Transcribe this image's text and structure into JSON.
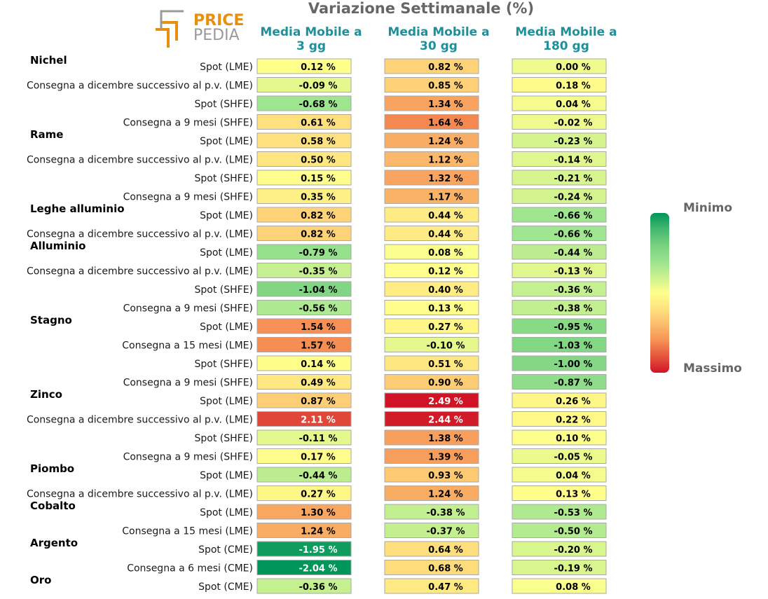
{
  "chart_data": {
    "type": "heatmap",
    "title": "Variazione Settimanale (%)",
    "columns": [
      "Media Mobile a\n3 gg",
      "Media Mobile a\n30 gg",
      "Media Mobile a\n180 gg"
    ],
    "groups": [
      {
        "name": "Nichel",
        "rows": [
          {
            "label": "Spot (LME)",
            "values": [
              0.12,
              0.82,
              0.0
            ]
          },
          {
            "label": "Consegna a dicembre successivo al p.v. (LME)",
            "values": [
              -0.09,
              0.85,
              0.18
            ]
          },
          {
            "label": "Spot (SHFE)",
            "values": [
              -0.68,
              1.34,
              0.04
            ]
          },
          {
            "label": "Consegna a 9 mesi (SHFE)",
            "values": [
              0.61,
              1.64,
              -0.02
            ]
          }
        ]
      },
      {
        "name": "Rame",
        "rows": [
          {
            "label": "Spot (LME)",
            "values": [
              0.58,
              1.24,
              -0.23
            ]
          },
          {
            "label": "Consegna a dicembre successivo al p.v. (LME)",
            "values": [
              0.5,
              1.12,
              -0.14
            ]
          },
          {
            "label": "Spot (SHFE)",
            "values": [
              0.15,
              1.32,
              -0.21
            ]
          },
          {
            "label": "Consegna a 9 mesi (SHFE)",
            "values": [
              0.35,
              1.17,
              -0.24
            ]
          }
        ]
      },
      {
        "name": "Leghe alluminio",
        "rows": [
          {
            "label": "Spot (LME)",
            "values": [
              0.82,
              0.44,
              -0.66
            ]
          },
          {
            "label": "Consegna a dicembre successivo al p.v. (LME)",
            "values": [
              0.82,
              0.44,
              -0.66
            ]
          }
        ]
      },
      {
        "name": "Alluminio",
        "rows": [
          {
            "label": "Spot (LME)",
            "values": [
              -0.79,
              0.08,
              -0.44
            ]
          },
          {
            "label": "Consegna a dicembre successivo al p.v. (LME)",
            "values": [
              -0.35,
              0.12,
              -0.13
            ]
          },
          {
            "label": "Spot (SHFE)",
            "values": [
              -1.04,
              0.4,
              -0.36
            ]
          },
          {
            "label": "Consegna a 9 mesi (SHFE)",
            "values": [
              -0.56,
              0.13,
              -0.38
            ]
          }
        ]
      },
      {
        "name": "Stagno",
        "rows": [
          {
            "label": "Spot (LME)",
            "values": [
              1.54,
              0.27,
              -0.95
            ]
          },
          {
            "label": "Consegna a 15 mesi (LME)",
            "values": [
              1.57,
              -0.1,
              -1.03
            ]
          },
          {
            "label": "Spot (SHFE)",
            "values": [
              0.14,
              0.51,
              -1.0
            ]
          },
          {
            "label": "Consegna a 9 mesi (SHFE)",
            "values": [
              0.49,
              0.9,
              -0.87
            ]
          }
        ]
      },
      {
        "name": "Zinco",
        "rows": [
          {
            "label": "Spot (LME)",
            "values": [
              0.87,
              2.49,
              0.26
            ]
          },
          {
            "label": "Consegna a dicembre successivo al p.v. (LME)",
            "values": [
              2.11,
              2.44,
              0.22
            ]
          },
          {
            "label": "Spot (SHFE)",
            "values": [
              -0.11,
              1.38,
              0.1
            ]
          },
          {
            "label": "Consegna a 9 mesi (SHFE)",
            "values": [
              0.17,
              1.39,
              -0.05
            ]
          }
        ]
      },
      {
        "name": "Piombo",
        "rows": [
          {
            "label": "Spot (LME)",
            "values": [
              -0.44,
              0.93,
              0.04
            ]
          },
          {
            "label": "Consegna a dicembre successivo al p.v. (LME)",
            "values": [
              0.27,
              1.24,
              0.13
            ]
          }
        ]
      },
      {
        "name": "Cobalto",
        "rows": [
          {
            "label": "Spot (LME)",
            "values": [
              1.3,
              -0.38,
              -0.53
            ]
          },
          {
            "label": "Consegna a 15 mesi (LME)",
            "values": [
              1.24,
              -0.37,
              -0.5
            ]
          }
        ]
      },
      {
        "name": "Argento",
        "rows": [
          {
            "label": "Spot (CME)",
            "values": [
              -1.95,
              0.64,
              -0.2
            ]
          },
          {
            "label": "Consegna a 6 mesi (CME)",
            "values": [
              -2.04,
              0.68,
              -0.19
            ]
          }
        ]
      },
      {
        "name": "Oro",
        "rows": [
          {
            "label": "Spot (CME)",
            "values": [
              -0.36,
              0.47,
              0.08
            ]
          }
        ]
      }
    ],
    "value_suffix": " %",
    "scale": {
      "min": -2.04,
      "mid": 0.12,
      "max": 2.49
    },
    "legend": {
      "min_label": "Minimo",
      "max_label": "Massimo",
      "colors": [
        "#1a9850",
        "#91cf60",
        "#d9ef8b",
        "#ffff8c",
        "#fee08b",
        "#fc8d59",
        "#d73027",
        "#cc0a1f"
      ]
    }
  },
  "logo": {
    "price": "PRICE",
    "pedia": "PEDIA",
    "accent": "#e8900c"
  }
}
